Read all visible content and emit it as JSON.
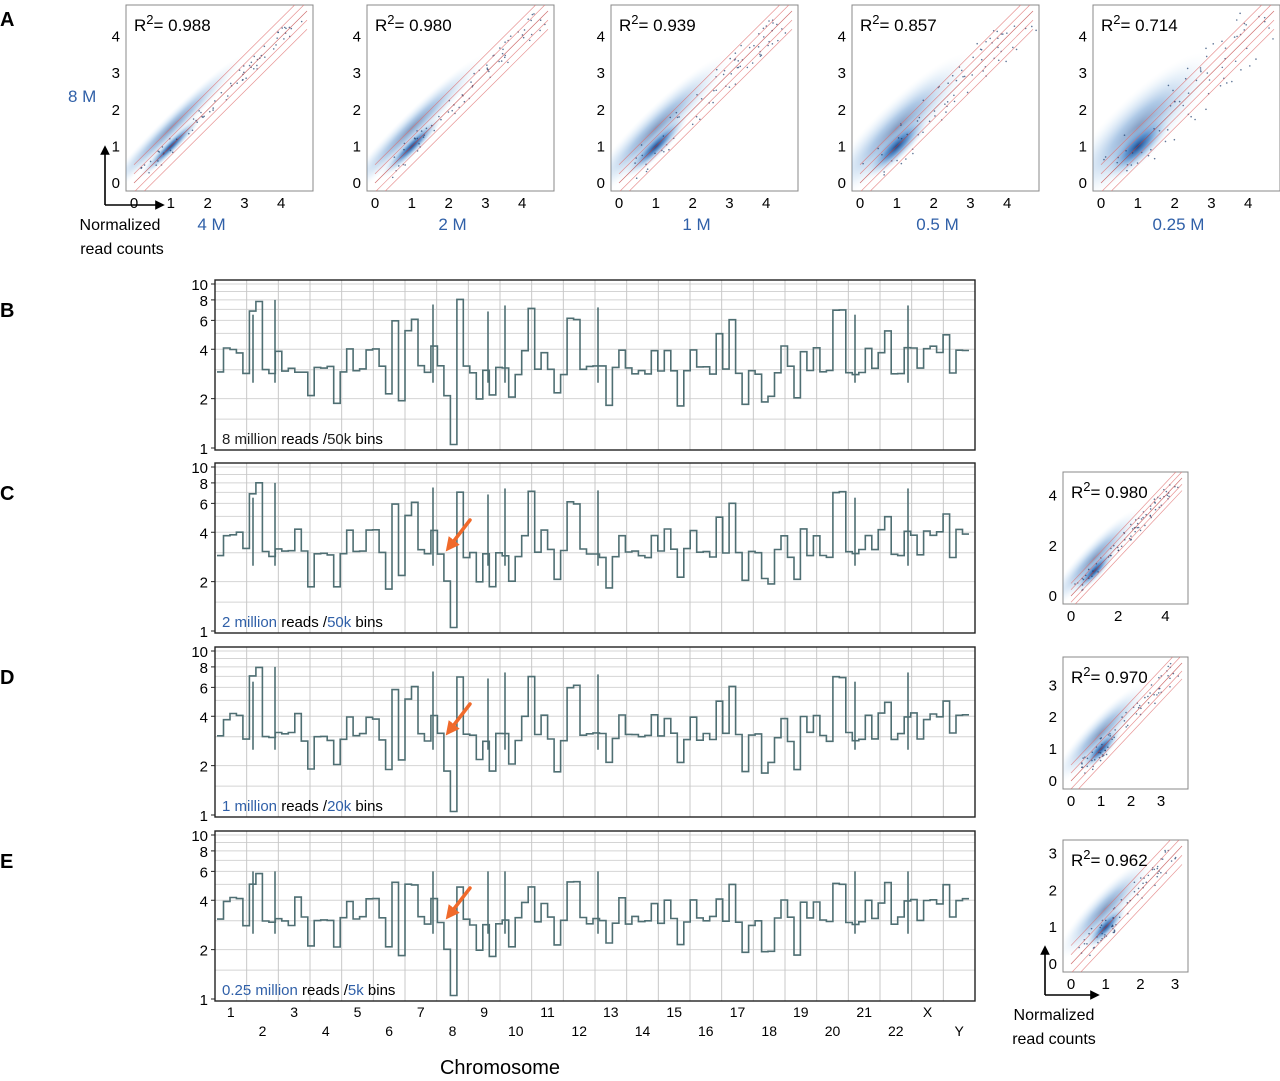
{
  "colors": {
    "scatter_blue": "#1f5fa6",
    "line_gray": "#4f6f73",
    "arrow_orange": "#f06a2b",
    "label_blue": "#3060a8",
    "guide_red": "#e07070",
    "grid": "#c8c8c8"
  },
  "panel_a": {
    "letter": "A",
    "y_sample_label": "8 M",
    "axis_label_line1": "Normalized",
    "axis_label_line2": "read counts",
    "ticks": [
      "0",
      "1",
      "2",
      "3",
      "4"
    ],
    "plots": [
      {
        "r2": "0.988",
        "x_sample_label": "4 M"
      },
      {
        "r2": "0.980",
        "x_sample_label": "2 M"
      },
      {
        "r2": "0.939",
        "x_sample_label": "1 M"
      },
      {
        "r2": "0.857",
        "x_sample_label": "0.5 M"
      },
      {
        "r2": "0.714",
        "x_sample_label": "0.25 M"
      }
    ]
  },
  "profiles": {
    "y_ticks": [
      "10",
      "8",
      "6",
      "4",
      "2",
      "1"
    ],
    "chromosomes": [
      "1",
      "2",
      "3",
      "4",
      "5",
      "6",
      "7",
      "8",
      "9",
      "10",
      "11",
      "12",
      "13",
      "14",
      "15",
      "16",
      "17",
      "18",
      "19",
      "20",
      "21",
      "22",
      "X",
      "Y"
    ],
    "xlabel": "Chromosome",
    "panels": [
      {
        "letter": "B",
        "reads": "8 million",
        "reads_suffix": " reads /",
        "bins": "50k",
        "bins_suffix": " bins",
        "arrow": false
      },
      {
        "letter": "C",
        "reads": "2 million",
        "reads_suffix": " reads /",
        "bins": "50k",
        "bins_suffix": " bins",
        "arrow": true
      },
      {
        "letter": "D",
        "reads": "1 million",
        "reads_suffix": " reads /",
        "bins": "20k",
        "bins_suffix": " bins",
        "arrow": true
      },
      {
        "letter": "E",
        "reads": "0.25 million",
        "reads_suffix": " reads /",
        "bins": "5k",
        "bins_suffix": " bins",
        "arrow": true
      }
    ]
  },
  "side_scatter": {
    "axis_label_line1": "Normalized",
    "axis_label_line2": "read counts",
    "plots": [
      {
        "r2": "0.980",
        "ticks": [
          "0",
          "2",
          "4"
        ]
      },
      {
        "r2": "0.970",
        "ticks": [
          "0",
          "1",
          "2",
          "3"
        ]
      },
      {
        "r2": "0.962",
        "ticks": [
          "0",
          "1",
          "2",
          "3"
        ]
      }
    ]
  },
  "chart_data": [
    {
      "type": "scatter",
      "panel": "A",
      "xlabel": "4 M",
      "ylabel": "8 M",
      "annotation": "R2 = 0.988",
      "xlim": [
        0,
        4.5
      ],
      "ylim": [
        0,
        4.5
      ]
    },
    {
      "type": "scatter",
      "panel": "A",
      "xlabel": "2 M",
      "annotation": "R2 = 0.980",
      "xlim": [
        0,
        4.5
      ],
      "ylim": [
        0,
        4.5
      ]
    },
    {
      "type": "scatter",
      "panel": "A",
      "xlabel": "1 M",
      "annotation": "R2 = 0.939",
      "xlim": [
        0,
        4.5
      ],
      "ylim": [
        0,
        4.5
      ]
    },
    {
      "type": "scatter",
      "panel": "A",
      "xlabel": "0.5 M",
      "annotation": "R2 = 0.857",
      "xlim": [
        0,
        4.5
      ],
      "ylim": [
        0,
        4.5
      ]
    },
    {
      "type": "scatter",
      "panel": "A",
      "xlabel": "0.25 M",
      "annotation": "R2 = 0.714",
      "xlim": [
        0,
        4.5
      ],
      "ylim": [
        0,
        4.5
      ]
    },
    {
      "type": "line",
      "panel": "B",
      "xlabel": "Chromosome",
      "annotation": "8 million reads /50k bins",
      "ylim": [
        1,
        10
      ],
      "y": [
        3,
        4,
        4,
        4,
        3,
        7,
        8,
        3,
        3,
        4,
        3,
        3,
        3,
        3,
        2,
        3,
        3,
        3,
        2,
        3,
        4,
        3,
        3,
        4,
        4,
        3,
        2,
        6,
        2,
        5,
        6,
        3,
        3,
        4,
        3,
        2,
        1,
        8,
        3,
        3,
        2,
        3,
        2,
        3,
        3,
        2,
        3,
        4,
        7,
        3,
        4,
        3,
        2,
        3,
        6,
        6,
        3,
        3,
        3,
        3,
        2,
        3,
        4,
        3,
        3,
        3,
        3,
        4,
        3,
        4,
        3,
        2,
        3,
        4,
        3,
        3,
        3,
        5,
        3,
        6,
        3,
        2,
        3,
        3,
        2,
        2,
        3,
        4,
        3,
        2,
        4,
        3,
        4,
        3,
        3,
        7,
        7,
        3,
        3,
        3,
        4,
        3,
        4,
        5,
        3,
        3,
        4,
        4,
        3,
        4,
        4,
        4,
        5,
        3,
        4,
        4
      ]
    },
    {
      "type": "line",
      "panel": "C",
      "xlabel": "Chromosome",
      "annotation": "2 million reads /50k bins",
      "ylim": [
        1,
        10
      ],
      "y": [
        3,
        4,
        4,
        4,
        3,
        7,
        8,
        3,
        3,
        3,
        3,
        3,
        4,
        3,
        2,
        3,
        3,
        3,
        2,
        3,
        4,
        3,
        3,
        4,
        4,
        3,
        2,
        6,
        2,
        5,
        6,
        3,
        3,
        4,
        3,
        2,
        1,
        7,
        3,
        3,
        2,
        3,
        2,
        3,
        3,
        2,
        3,
        4,
        7,
        3,
        4,
        3,
        2,
        3,
        6,
        6,
        3,
        3,
        3,
        3,
        2,
        3,
        4,
        3,
        3,
        3,
        3,
        4,
        3,
        4,
        3,
        2,
        3,
        4,
        3,
        3,
        3,
        5,
        3,
        6,
        3,
        2,
        3,
        3,
        2,
        2,
        3,
        4,
        3,
        2,
        4,
        3,
        4,
        3,
        3,
        7,
        7,
        3,
        3,
        3,
        4,
        3,
        4,
        5,
        3,
        3,
        4,
        4,
        3,
        4,
        4,
        4,
        5,
        3,
        4,
        4
      ]
    },
    {
      "type": "line",
      "panel": "D",
      "xlabel": "Chromosome",
      "annotation": "1 million reads /20k bins",
      "ylim": [
        1,
        10
      ],
      "y": [
        3,
        4,
        4,
        4,
        3,
        7,
        8,
        3,
        3,
        3,
        3,
        3,
        4,
        3,
        2,
        3,
        3,
        3,
        2,
        3,
        4,
        3,
        3,
        4,
        4,
        3,
        2,
        6,
        2,
        5,
        6,
        3,
        3,
        4,
        3,
        2,
        1,
        7,
        3,
        3,
        2,
        3,
        2,
        3,
        3,
        2,
        3,
        4,
        7,
        3,
        4,
        3,
        2,
        3,
        6,
        6,
        3,
        3,
        3,
        3,
        2,
        3,
        4,
        3,
        3,
        3,
        3,
        4,
        3,
        4,
        3,
        2,
        3,
        4,
        3,
        3,
        3,
        5,
        3,
        6,
        3,
        2,
        3,
        3,
        2,
        2,
        3,
        4,
        3,
        2,
        4,
        3,
        4,
        3,
        3,
        7,
        7,
        3,
        3,
        3,
        4,
        3,
        4,
        5,
        3,
        3,
        4,
        4,
        3,
        4,
        4,
        4,
        5,
        3,
        4,
        4
      ]
    },
    {
      "type": "line",
      "panel": "E",
      "xlabel": "Chromosome",
      "annotation": "0.25 million reads /5k bins",
      "ylim": [
        1,
        10
      ],
      "y": [
        3,
        4,
        4,
        4,
        3,
        5,
        6,
        3,
        3,
        3,
        3,
        3,
        4,
        3,
        2,
        3,
        3,
        3,
        2,
        3,
        4,
        3,
        3,
        4,
        4,
        3,
        2,
        5,
        2,
        5,
        5,
        3,
        3,
        4,
        3,
        2,
        1,
        5,
        3,
        3,
        2,
        3,
        2,
        3,
        3,
        2,
        3,
        4,
        5,
        3,
        4,
        3,
        2,
        3,
        5,
        5,
        3,
        3,
        3,
        3,
        2,
        3,
        4,
        3,
        3,
        3,
        3,
        4,
        3,
        4,
        3,
        2,
        3,
        4,
        3,
        3,
        3,
        4,
        3,
        5,
        3,
        2,
        3,
        3,
        2,
        2,
        3,
        4,
        3,
        2,
        4,
        3,
        4,
        3,
        3,
        5,
        5,
        3,
        3,
        3,
        4,
        3,
        4,
        5,
        3,
        3,
        4,
        4,
        3,
        4,
        4,
        4,
        5,
        3,
        4,
        4
      ]
    },
    {
      "type": "scatter",
      "panel": "C-side",
      "annotation": "R2 = 0.980",
      "xlim": [
        0,
        4.5
      ],
      "ylim": [
        0,
        4.5
      ]
    },
    {
      "type": "scatter",
      "panel": "D-side",
      "annotation": "R2 = 0.970",
      "xlim": [
        0,
        3.5
      ],
      "ylim": [
        0,
        3.5
      ]
    },
    {
      "type": "scatter",
      "panel": "E-side",
      "xlabel": "Normalized read counts",
      "annotation": "R2 = 0.962",
      "xlim": [
        0,
        3.2
      ],
      "ylim": [
        0,
        3.2
      ]
    }
  ]
}
